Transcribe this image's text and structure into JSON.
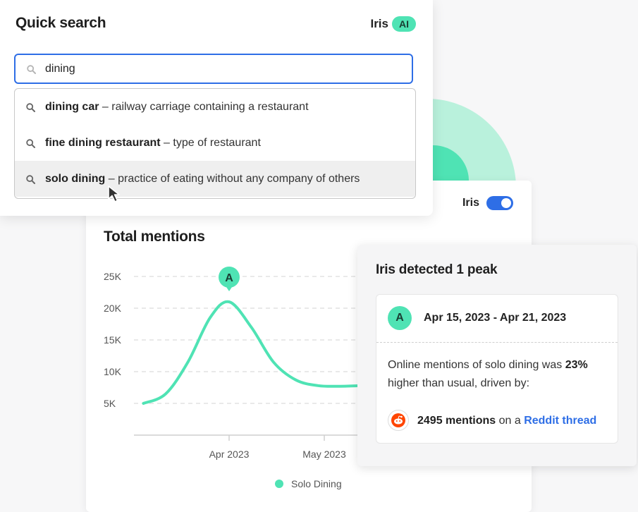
{
  "quick_search": {
    "title": "Quick search",
    "assistant_name": "Iris",
    "ai_badge": "AI",
    "input_value": "dining",
    "suggestions": [
      {
        "term": "dining car",
        "definition": "– railway carriage containing a restaurant"
      },
      {
        "term": "fine dining restaurant",
        "definition": "– type of restaurant"
      },
      {
        "term": "solo dining",
        "definition": "– practice of eating without any company of others"
      }
    ]
  },
  "chart_panel": {
    "iris_label": "Iris",
    "iris_enabled": true,
    "title": "Total mentions",
    "peak_marker": "A"
  },
  "chart_data": {
    "type": "line",
    "title": "Total mentions",
    "yticks": [
      "25K",
      "20K",
      "15K",
      "10K",
      "5K"
    ],
    "ytick_values": [
      25000,
      20000,
      15000,
      10000,
      5000
    ],
    "xticks": [
      "Apr 2023",
      "May 2023"
    ],
    "xtick_values": [
      "2023-04-15",
      "2023-05-15"
    ],
    "ylim": [
      0,
      26000
    ],
    "grid": true,
    "legend_position": "bottom",
    "series": [
      {
        "name": "Solo Dining",
        "color": "#4fe3b4",
        "x": [
          "2023-03-19",
          "2023-03-26",
          "2023-04-02",
          "2023-04-09",
          "2023-04-15",
          "2023-04-22",
          "2023-04-29",
          "2023-05-06",
          "2023-05-13",
          "2023-05-20",
          "2023-05-27"
        ],
        "y": [
          5000,
          6500,
          11500,
          18500,
          21000,
          17000,
          11500,
          8700,
          7800,
          7700,
          7800
        ]
      }
    ],
    "annotations": [
      {
        "label": "A",
        "x": "2023-04-15",
        "y": 21000
      }
    ]
  },
  "peak_card": {
    "title": "Iris detected 1 peak",
    "marker": "A",
    "date_range": "Apr 15, 2023 - Apr 21, 2023",
    "desc_prefix": "Online mentions of solo dining was ",
    "desc_percent": "23%",
    "desc_suffix": " higher than usual, driven by:",
    "mentions": "2495 mentions",
    "mentions_connector": " on a ",
    "link_text": "Reddit thread",
    "reddit_color": "#ff4500"
  },
  "colors": {
    "accent_blue": "#2e6ee6",
    "accent_green": "#4fe3b4"
  }
}
